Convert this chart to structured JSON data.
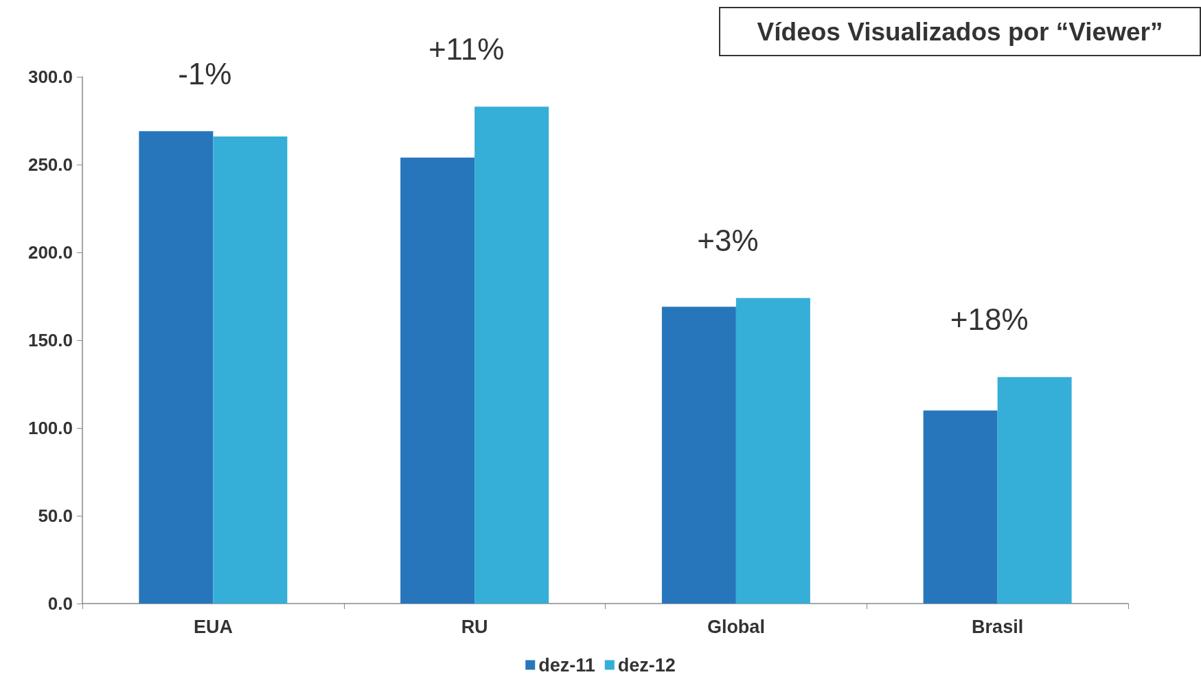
{
  "chart_data": {
    "type": "bar",
    "title": "Vídeos Visualizados por “Viewer”",
    "categories": [
      "EUA",
      "RU",
      "Global",
      "Brasil"
    ],
    "series": [
      {
        "name": "dez-11",
        "color": "#2776bb",
        "values": [
          269,
          254,
          169,
          110
        ]
      },
      {
        "name": "dez-12",
        "color": "#35aed8",
        "values": [
          266,
          283,
          174,
          129
        ]
      }
    ],
    "ylim": [
      0,
      300
    ],
    "yticks": [
      {
        "value": 0,
        "label": "0.0"
      },
      {
        "value": 50,
        "label": "50.0"
      },
      {
        "value": 100,
        "label": "100.0"
      },
      {
        "value": 150,
        "label": "150.0"
      },
      {
        "value": 200,
        "label": "200.0"
      },
      {
        "value": 250,
        "label": "250.0"
      },
      {
        "value": 300,
        "label": "300.0"
      }
    ],
    "annotations": [
      "-1%",
      "+11%",
      "+3%",
      "+18%"
    ],
    "grid": false,
    "legend": "bottom"
  }
}
